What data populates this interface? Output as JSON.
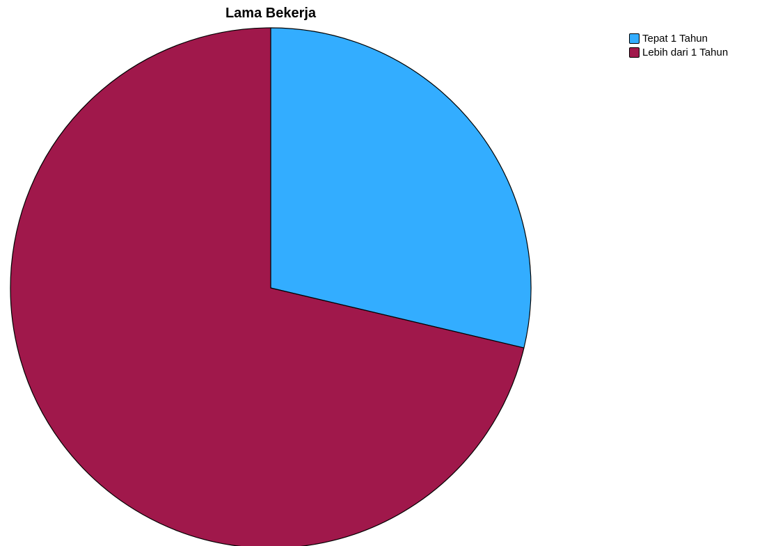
{
  "chart_data": {
    "type": "pie",
    "title": "Lama Bekerja",
    "legend_position": "top-right",
    "start_angle_deg": 0,
    "direction": "clockwise",
    "slices": [
      {
        "label": "Tepat 1 Tahun",
        "value": 28.7,
        "color": "#33adff"
      },
      {
        "label": "Lebih dari 1 Tahun",
        "value": 71.3,
        "color": "#a0184b"
      }
    ]
  }
}
